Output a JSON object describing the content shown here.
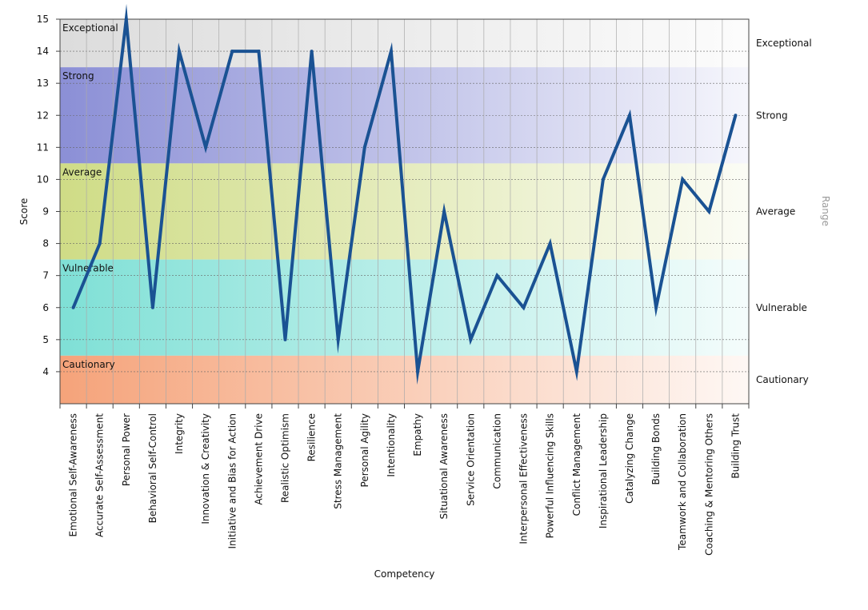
{
  "chart_data": {
    "type": "line",
    "title": "",
    "xlabel": "Competency",
    "ylabel": "Score",
    "right_axis_label": "Range",
    "ylim": [
      3,
      15
    ],
    "yticks": [
      4,
      5,
      6,
      7,
      8,
      9,
      10,
      11,
      12,
      13,
      14,
      15
    ],
    "grid": true,
    "line_color": "#1a5293",
    "categories": [
      "Emotional Self-Awareness",
      "Accurate Self-Assessment",
      "Personal Power",
      "Behavioral Self-Control",
      "Integrity",
      "Innovation & Creativity",
      "Initiative and Bias for Action",
      "Achievement Drive",
      "Realistic Optimism",
      "Resilience",
      "Stress Management",
      "Personal Agility",
      "Intentionality",
      "Empathy",
      "Situational Awareness",
      "Service Orientation",
      "Communication",
      "Interpersonal Effectiveness",
      "Powerful Influencing Skills",
      "Conflict Management",
      "Inspirational Leadership",
      "Catalyzing Change",
      "Building Bonds",
      "Teamwork and Collaboration",
      "Coaching & Mentoring Others",
      "Building Trust"
    ],
    "series": [
      {
        "values": [
          6,
          8,
          15,
          6,
          14,
          11,
          14,
          14,
          5,
          14,
          5,
          11,
          14,
          4,
          9,
          5,
          7,
          6,
          8,
          4,
          10,
          12,
          6,
          10,
          9,
          12
        ]
      }
    ],
    "bands": [
      {
        "name": "Exceptional",
        "from": 13.5,
        "to": 15,
        "color": "#dcdcdc",
        "right_label": "Exceptional"
      },
      {
        "name": "Strong",
        "from": 10.5,
        "to": 13.5,
        "color": "#8b8fd6",
        "right_label": "Strong"
      },
      {
        "name": "Average",
        "from": 7.5,
        "to": 10.5,
        "color": "#cfdc86",
        "right_label": "Average"
      },
      {
        "name": "Vulnerable",
        "from": 4.5,
        "to": 7.5,
        "color": "#7fe0d6",
        "right_label": "Vulnerable"
      },
      {
        "name": "Cautionary",
        "from": 3,
        "to": 4.5,
        "color": "#f5a37a",
        "right_label": "Cautionary"
      }
    ]
  }
}
